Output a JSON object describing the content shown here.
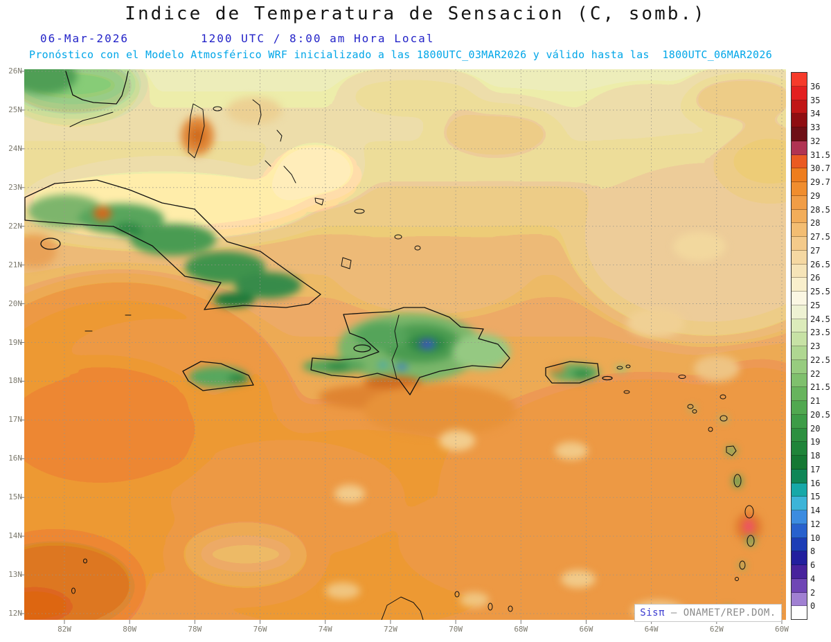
{
  "header": {
    "title": "Indice de Temperatura de Sensacion (C, somb.)",
    "date": "06-Mar-2026",
    "time": "1200 UTC / 8:00 am Hora Local",
    "forecast": "Pronóstico con el Modelo Atmosférico WRF inicializado a las 1800UTC_03MAR2026 y válido hasta las  1800UTC_06MAR2026"
  },
  "map": {
    "lat_labels": [
      "26N",
      "25N",
      "24N",
      "23N",
      "22N",
      "21N",
      "20N",
      "19N",
      "18N",
      "17N",
      "16N",
      "15N",
      "14N",
      "13N",
      "12N"
    ],
    "lon_labels": [
      "82W",
      "80W",
      "78W",
      "76W",
      "74W",
      "72W",
      "70W",
      "68W",
      "66W",
      "64W",
      "62W",
      "60W"
    ]
  },
  "colorbar": {
    "cells": [
      {
        "color": "#f63b2b",
        "label": "36"
      },
      {
        "color": "#e32020",
        "label": "35"
      },
      {
        "color": "#c01616",
        "label": "34"
      },
      {
        "color": "#8f0e12",
        "label": "33"
      },
      {
        "color": "#6e1016",
        "label": "32"
      },
      {
        "color": "#b03352",
        "label": "31.5"
      },
      {
        "color": "#ea5a22",
        "label": "30.7"
      },
      {
        "color": "#ee7d1e",
        "label": "29.7"
      },
      {
        "color": "#f08d2e",
        "label": "29"
      },
      {
        "color": "#f19d46",
        "label": "28.5"
      },
      {
        "color": "#f2ad5a",
        "label": "28"
      },
      {
        "color": "#f3bd72",
        "label": "27.5"
      },
      {
        "color": "#f4ca8a",
        "label": "27"
      },
      {
        "color": "#f5d8a2",
        "label": "26.5"
      },
      {
        "color": "#f6e4b8",
        "label": "26"
      },
      {
        "color": "#f9efcc",
        "label": "25.5"
      },
      {
        "color": "#fbf7e3",
        "label": "25"
      },
      {
        "color": "#eef2d3",
        "label": "24.5"
      },
      {
        "color": "#dcecbb",
        "label": "23.5"
      },
      {
        "color": "#c7e2a5",
        "label": "23"
      },
      {
        "color": "#afd791",
        "label": "22.5"
      },
      {
        "color": "#97cc7f",
        "label": "22"
      },
      {
        "color": "#7fc06d",
        "label": "21.5"
      },
      {
        "color": "#67b45d",
        "label": "21"
      },
      {
        "color": "#51a850",
        "label": "20.5"
      },
      {
        "color": "#3d9c47",
        "label": "20"
      },
      {
        "color": "#2d9040",
        "label": "19"
      },
      {
        "color": "#1f8439",
        "label": "18"
      },
      {
        "color": "#157833",
        "label": "17"
      },
      {
        "color": "#0f8657",
        "label": "16"
      },
      {
        "color": "#16a8a8",
        "label": "15"
      },
      {
        "color": "#3cb4d8",
        "label": "14"
      },
      {
        "color": "#3c8ce0",
        "label": "12"
      },
      {
        "color": "#2861cd",
        "label": "10"
      },
      {
        "color": "#1c3db6",
        "label": "8"
      },
      {
        "color": "#221f9e",
        "label": "6"
      },
      {
        "color": "#47229c",
        "label": "4"
      },
      {
        "color": "#6f46b5",
        "label": "2"
      },
      {
        "color": "#a080d2",
        "label": "0"
      },
      {
        "color": "#ffffff",
        "label": ""
      }
    ]
  },
  "attribution": {
    "brand": "Sisπ",
    "text": " – ONAMET/REP.DOM."
  },
  "colors": {
    "title_text": "#141414",
    "date_text": "#2323c8",
    "forecast_text": "#00a6e8",
    "axis_text": "#7d7a6e"
  }
}
